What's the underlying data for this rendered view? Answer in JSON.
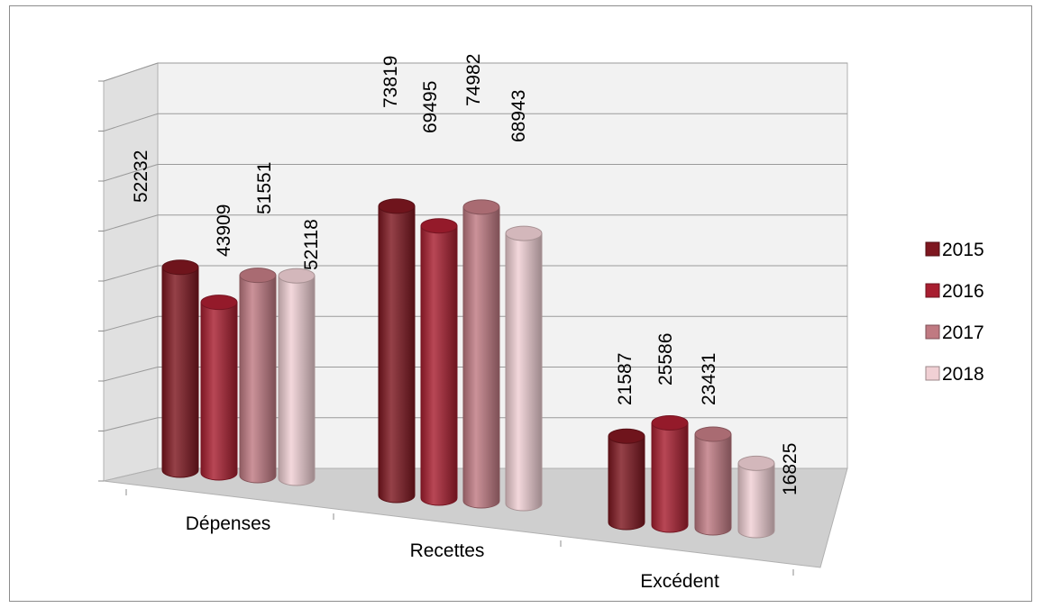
{
  "chart_data": {
    "type": "bar",
    "style": "3d-cylinder",
    "categories": [
      "Dépenses",
      "Recettes",
      "Excédent"
    ],
    "series": [
      {
        "name": "2015",
        "color": "#7e1720",
        "values": [
          52232,
          73819,
          21587
        ]
      },
      {
        "name": "2016",
        "color": "#a81e30",
        "values": [
          43909,
          69495,
          25586
        ]
      },
      {
        "name": "2017",
        "color": "#c07a82",
        "values": [
          51551,
          74982,
          23431
        ]
      },
      {
        "name": "2018",
        "color": "#f0d0d4",
        "values": [
          52118,
          68943,
          16825
        ]
      }
    ],
    "legend_position": "right",
    "grid": true
  }
}
